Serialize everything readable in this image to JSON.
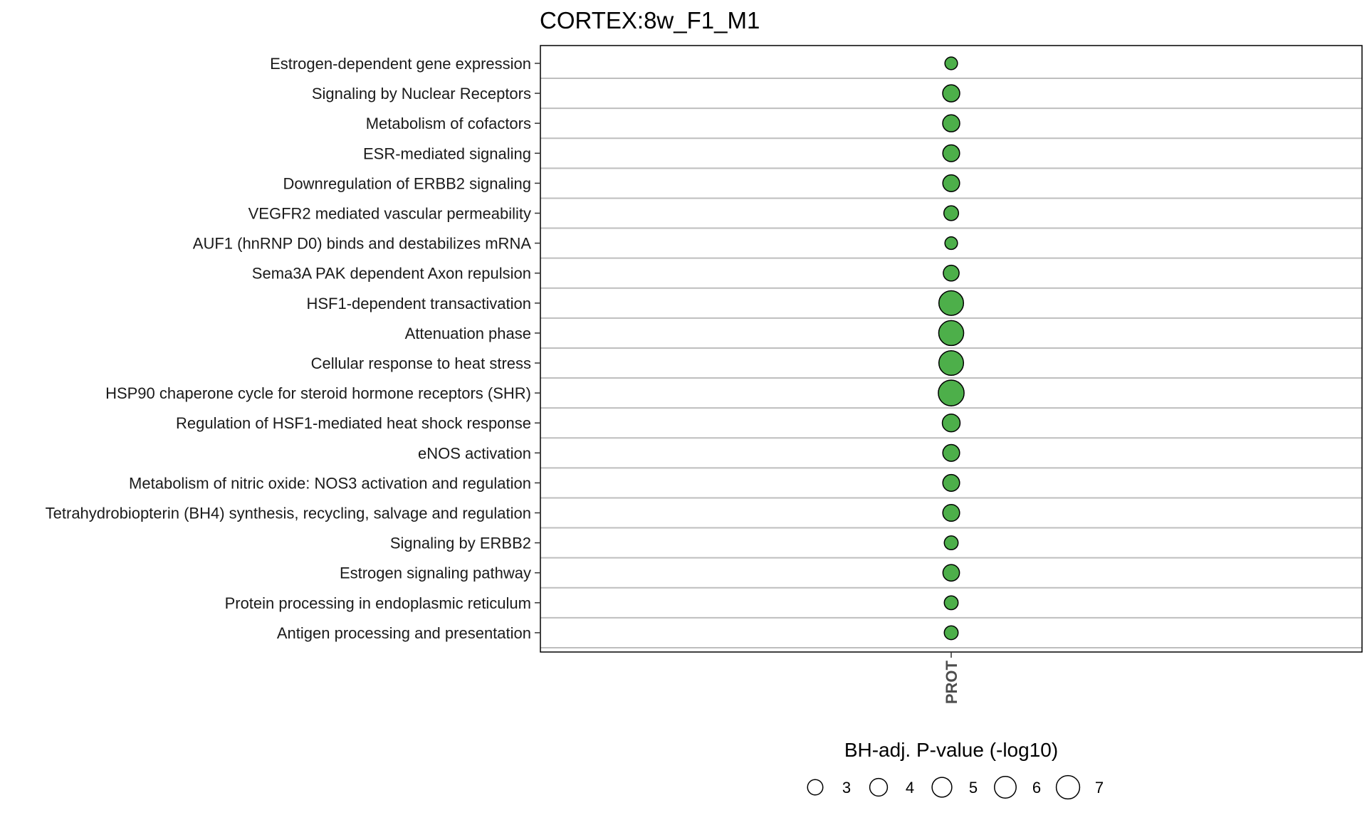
{
  "chart_data": {
    "type": "scatter",
    "title": "CORTEX:8w_F1_M1",
    "x_categories": [
      "PROT"
    ],
    "y_categories": [
      "Estrogen-dependent gene expression",
      "Signaling by Nuclear Receptors",
      "Metabolism of cofactors",
      "ESR-mediated signaling",
      "Downregulation of ERBB2 signaling",
      "VEGFR2 mediated vascular permeability",
      "AUF1 (hnRNP D0) binds and destabilizes mRNA",
      "Sema3A PAK dependent Axon repulsion",
      "HSF1-dependent transactivation",
      "Attenuation phase",
      "Cellular response to heat stress",
      "HSP90 chaperone cycle for steroid hormone receptors (SHR)",
      "Regulation of HSF1-mediated heat shock response",
      "eNOS activation",
      "Metabolism of nitric oxide: NOS3 activation and regulation",
      "Tetrahydrobiopterin (BH4) synthesis, recycling, salvage and regulation",
      "Signaling by ERBB2",
      "Estrogen signaling pathway",
      "Protein processing in endoplasmic reticulum",
      "Antigen processing and presentation"
    ],
    "points": [
      {
        "x": "PROT",
        "y": "Estrogen-dependent gene expression",
        "size": 1.9
      },
      {
        "x": "PROT",
        "y": "Signaling by Nuclear Receptors",
        "size": 3.5
      },
      {
        "x": "PROT",
        "y": "Metabolism of cofactors",
        "size": 3.5
      },
      {
        "x": "PROT",
        "y": "ESR-mediated signaling",
        "size": 3.4
      },
      {
        "x": "PROT",
        "y": "Downregulation of ERBB2 signaling",
        "size": 3.4
      },
      {
        "x": "PROT",
        "y": "VEGFR2 mediated vascular permeability",
        "size": 2.6
      },
      {
        "x": "PROT",
        "y": "AUF1 (hnRNP D0) binds and destabilizes mRNA",
        "size": 1.9
      },
      {
        "x": "PROT",
        "y": "Sema3A PAK dependent Axon repulsion",
        "size": 3.0
      },
      {
        "x": "PROT",
        "y": "HSF1-dependent transactivation",
        "size": 7.3
      },
      {
        "x": "PROT",
        "y": "Attenuation phase",
        "size": 7.5
      },
      {
        "x": "PROT",
        "y": "Cellular response to heat stress",
        "size": 7.3
      },
      {
        "x": "PROT",
        "y": "HSP90 chaperone cycle for steroid hormone receptors (SHR)",
        "size": 8.0
      },
      {
        "x": "PROT",
        "y": "Regulation of HSF1-mediated heat shock response",
        "size": 3.8
      },
      {
        "x": "PROT",
        "y": "eNOS activation",
        "size": 3.4
      },
      {
        "x": "PROT",
        "y": "Metabolism of nitric oxide: NOS3 activation and regulation",
        "size": 3.4
      },
      {
        "x": "PROT",
        "y": "Tetrahydrobiopterin (BH4) synthesis, recycling, salvage and regulation",
        "size": 3.4
      },
      {
        "x": "PROT",
        "y": "Signaling by ERBB2",
        "size": 2.3
      },
      {
        "x": "PROT",
        "y": "Estrogen signaling pathway",
        "size": 3.3
      },
      {
        "x": "PROT",
        "y": "Protein processing in endoplasmic reticulum",
        "size": 2.3
      },
      {
        "x": "PROT",
        "y": "Antigen processing and presentation",
        "size": 2.3
      }
    ],
    "size_variable": "BH-adj. P-value (-log10)",
    "legend": {
      "title": "BH-adj. P-value (-log10)",
      "values": [
        3,
        4,
        5,
        6,
        7
      ],
      "placement": "bottom"
    },
    "colors": {
      "point_fill": "#4daf4a",
      "point_stroke": "#000000",
      "gridline": "#bebebe",
      "panel_border": "#000000"
    },
    "grid": true
  }
}
